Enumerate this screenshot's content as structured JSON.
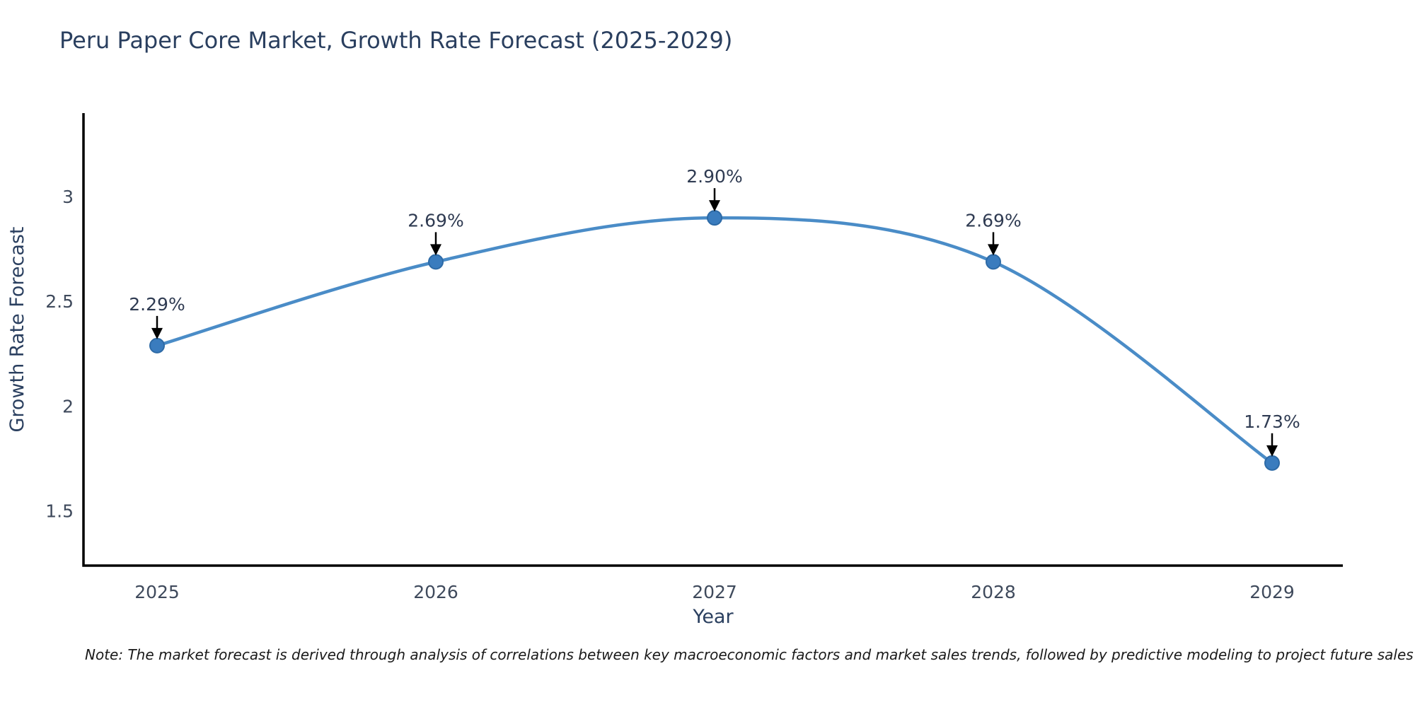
{
  "title": "Peru Paper Core Market, Growth Rate Forecast (2025-2029)",
  "note": "Note: The market forecast is derived through analysis of correlations between key macroeconomic factors and market sales trends, followed by predictive modeling to project future sales",
  "chart_data": {
    "type": "line",
    "title": "Peru Paper Core Market, Growth Rate Forecast (2025-2029)",
    "xlabel": "Year",
    "ylabel": "Growth Rate Forecast",
    "x": [
      2025,
      2026,
      2027,
      2028,
      2029
    ],
    "categories": [
      "2025",
      "2026",
      "2027",
      "2028",
      "2029"
    ],
    "values": [
      2.29,
      2.69,
      2.9,
      2.69,
      1.73
    ],
    "point_labels": [
      "2.29%",
      "2.69%",
      "2.90%",
      "2.69%",
      "1.73%"
    ],
    "yticks": [
      3,
      2.5,
      2,
      1.5
    ],
    "ytick_labels": [
      "3",
      "2.5",
      "2",
      "1.5"
    ],
    "ylim": [
      1.24,
      3.4
    ],
    "line_shape": "spline",
    "grid": false,
    "legend": "none",
    "colors": {
      "line": "#4a8cc7",
      "marker": "#3a7cbe",
      "marker_edge": "#2d6aa6",
      "arrow": "#000000",
      "axis": "#000000",
      "title_text": "#2a3f5f",
      "tick_text": "#3f4a5c"
    }
  }
}
